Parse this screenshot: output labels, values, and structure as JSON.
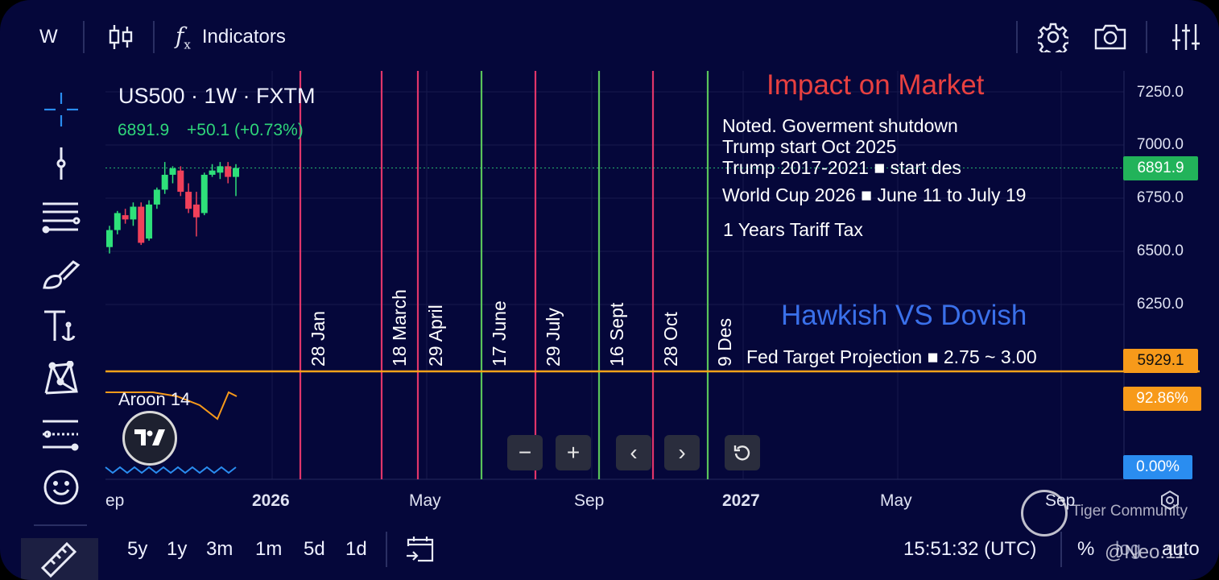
{
  "toolbar": {
    "interval": "W",
    "indicators_label": "Indicators"
  },
  "legend": {
    "symbol_line": "US500 · 1W · FXTM",
    "price": "6891.9",
    "change": "+50.1 (+0.73%)"
  },
  "chart_data": {
    "type": "candlestick",
    "y_ticks": [
      "7250.0",
      "7000.0",
      "6750.0",
      "6500.0",
      "6250.0"
    ],
    "ylim": [
      5900,
      7300
    ],
    "x_ticks": [
      "ep",
      "2026",
      "May",
      "Sep",
      "2027",
      "May",
      "Sep"
    ],
    "last_price": 6891.9,
    "horizontal_line": 5929.1,
    "candles": [
      {
        "o": 6520,
        "h": 6620,
        "l": 6490,
        "c": 6600
      },
      {
        "o": 6600,
        "h": 6690,
        "l": 6580,
        "c": 6680
      },
      {
        "o": 6670,
        "h": 6700,
        "l": 6630,
        "c": 6650
      },
      {
        "o": 6650,
        "h": 6730,
        "l": 6620,
        "c": 6710
      },
      {
        "o": 6710,
        "h": 6730,
        "l": 6530,
        "c": 6540
      },
      {
        "o": 6560,
        "h": 6740,
        "l": 6550,
        "c": 6720
      },
      {
        "o": 6720,
        "h": 6800,
        "l": 6700,
        "c": 6790
      },
      {
        "o": 6790,
        "h": 6920,
        "l": 6770,
        "c": 6860
      },
      {
        "o": 6860,
        "h": 6900,
        "l": 6820,
        "c": 6890
      },
      {
        "o": 6880,
        "h": 6900,
        "l": 6760,
        "c": 6780
      },
      {
        "o": 6780,
        "h": 6820,
        "l": 6680,
        "c": 6700
      },
      {
        "o": 6720,
        "h": 6780,
        "l": 6570,
        "c": 6660
      },
      {
        "o": 6680,
        "h": 6870,
        "l": 6670,
        "c": 6860
      },
      {
        "o": 6860,
        "h": 6910,
        "l": 6850,
        "c": 6880
      },
      {
        "o": 6870,
        "h": 6920,
        "l": 6840,
        "c": 6900
      },
      {
        "o": 6900,
        "h": 6920,
        "l": 6820,
        "c": 6850
      },
      {
        "o": 6850,
        "h": 6910,
        "l": 6760,
        "c": 6891.9
      }
    ],
    "event_lines": [
      {
        "label": "28 Jan",
        "color": "#e0356a"
      },
      {
        "label": "18 March",
        "color": "#e0356a"
      },
      {
        "label": "29 April",
        "color": "#e0356a"
      },
      {
        "label": "17 June",
        "color": "#59c35a"
      },
      {
        "label": "29 July",
        "color": "#e0356a"
      },
      {
        "label": "16 Sept",
        "color": "#59c35a"
      },
      {
        "label": "28 Oct",
        "color": "#e0356a"
      },
      {
        "label": "9 Des",
        "color": "#59c35a"
      }
    ]
  },
  "annotations": {
    "impact_title": "Impact on Market",
    "lines": [
      "Noted. Goverment shutdown",
      "Trump  start Oct 2025",
      "Trump 2017-2021 ■ start des",
      "World Cup 2026 ■ June 11 to July 19",
      "1 Years Tariff Tax"
    ],
    "hawkish_title": "Hawkish VS Dovish",
    "fed_line": "Fed Target Projection ■ 2.75 ~ 3.00"
  },
  "price_tags": {
    "last": "6891.9",
    "line": "5929.1",
    "aroon_up": "92.86%",
    "aroon_down": "0.00%"
  },
  "indicator": {
    "name": "Aroon 14"
  },
  "bottom_bar": {
    "ranges": [
      "5y",
      "1y",
      "3m",
      "1m",
      "5d",
      "1d"
    ],
    "time": "15:51:32 (UTC)",
    "percent": "%",
    "log": "log",
    "auto": "auto"
  },
  "watermark": {
    "community": "Tiger Community",
    "user": "@Neo.11"
  },
  "colors": {
    "background": "#05073a",
    "up": "#26a69a",
    "down": "#ef5350",
    "red_line": "#e0356a",
    "green_line": "#59c35a",
    "orange": "#f79a1a",
    "blue": "#2a8df0"
  }
}
